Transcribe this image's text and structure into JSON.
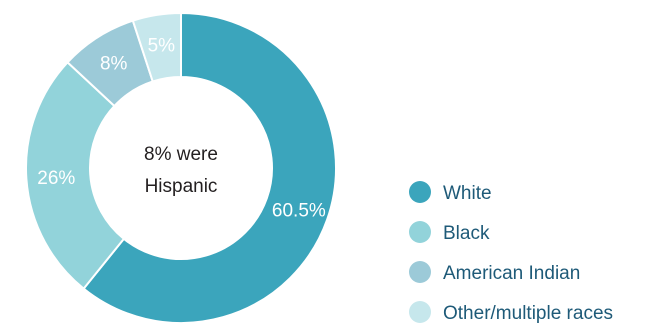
{
  "chart_data": {
    "type": "pie",
    "donut": true,
    "center_text": [
      "8% were",
      "Hispanic"
    ],
    "categories": [
      "White",
      "Black",
      "American Indian",
      "Other/multiple races"
    ],
    "values": [
      60.5,
      26,
      8,
      5
    ],
    "data_labels": [
      "60.5%",
      "26%",
      "8%",
      "5%"
    ],
    "colors": [
      "#3ba5bc",
      "#92d3da",
      "#9ccad8",
      "#c6e7ec"
    ],
    "legend_position": "right",
    "start": "top, clockwise"
  }
}
